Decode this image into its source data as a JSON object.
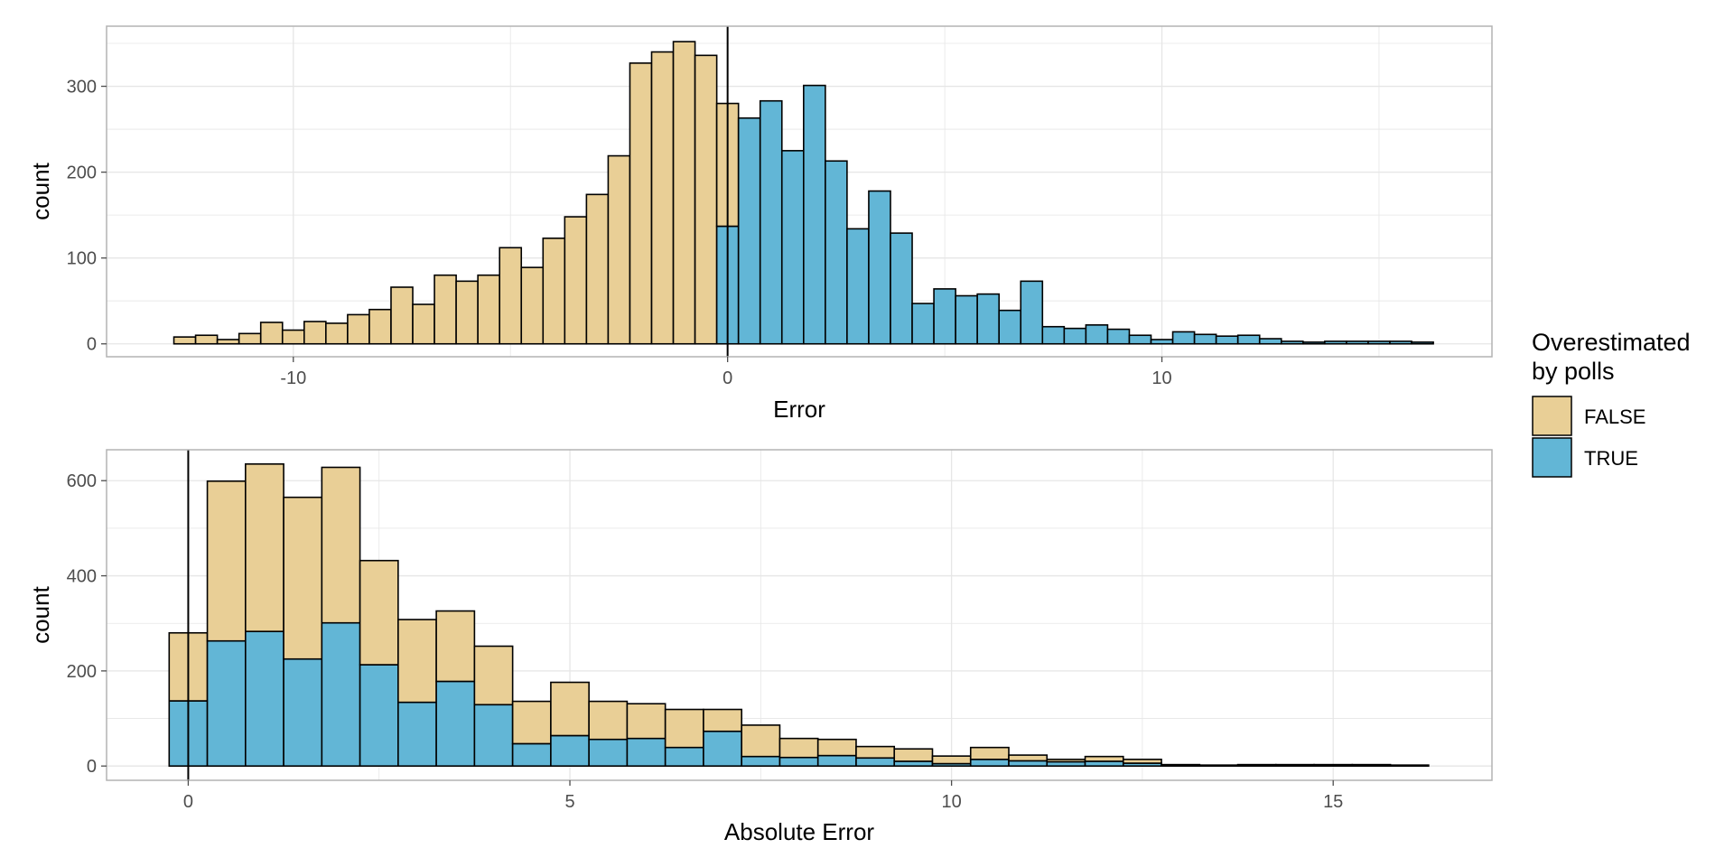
{
  "colors": {
    "false_fill": "#E9CF96",
    "true_fill": "#62B6D6",
    "bar_stroke": "#000000",
    "grid": "#e6e6e6",
    "panel_border": "#b3b3b3",
    "tick_text": "#4d4d4d"
  },
  "legend": {
    "title_line1": "Overestimated",
    "title_line2": "by polls",
    "items": [
      {
        "label": "FALSE",
        "color": "#E9CF96"
      },
      {
        "label": "TRUE",
        "color": "#62B6D6"
      }
    ],
    "position": "right"
  },
  "chart_data": [
    {
      "type": "bar",
      "subtype": "stacked-histogram",
      "xlabel": "Error",
      "ylabel": "count",
      "xlim": [
        -14.3,
        17.6
      ],
      "ylim": [
        -15,
        370
      ],
      "xticks": [
        -10,
        0,
        10
      ],
      "yticks": [
        0,
        100,
        200,
        300
      ],
      "vline": 0,
      "grid": true,
      "bin_width": 0.5,
      "bins": [
        {
          "x0": -12.75,
          "false": 8,
          "true": 0
        },
        {
          "x0": -12.25,
          "false": 10,
          "true": 0
        },
        {
          "x0": -11.75,
          "false": 5,
          "true": 0
        },
        {
          "x0": -11.25,
          "false": 12,
          "true": 0
        },
        {
          "x0": -10.75,
          "false": 25,
          "true": 0
        },
        {
          "x0": -10.25,
          "false": 16,
          "true": 0
        },
        {
          "x0": -9.75,
          "false": 26,
          "true": 0
        },
        {
          "x0": -9.25,
          "false": 24,
          "true": 0
        },
        {
          "x0": -8.75,
          "false": 34,
          "true": 0
        },
        {
          "x0": -8.25,
          "false": 40,
          "true": 0
        },
        {
          "x0": -7.75,
          "false": 66,
          "true": 0
        },
        {
          "x0": -7.25,
          "false": 46,
          "true": 0
        },
        {
          "x0": -6.75,
          "false": 80,
          "true": 0
        },
        {
          "x0": -6.25,
          "false": 73,
          "true": 0
        },
        {
          "x0": -5.75,
          "false": 80,
          "true": 0
        },
        {
          "x0": -5.25,
          "false": 112,
          "true": 0
        },
        {
          "x0": -4.75,
          "false": 89,
          "true": 0
        },
        {
          "x0": -4.25,
          "false": 123,
          "true": 0
        },
        {
          "x0": -3.75,
          "false": 148,
          "true": 0
        },
        {
          "x0": -3.25,
          "false": 174,
          "true": 0
        },
        {
          "x0": -2.75,
          "false": 219,
          "true": 0
        },
        {
          "x0": -2.25,
          "false": 327,
          "true": 0
        },
        {
          "x0": -1.75,
          "false": 340,
          "true": 0
        },
        {
          "x0": -1.25,
          "false": 352,
          "true": 0
        },
        {
          "x0": -0.75,
          "false": 336,
          "true": 0
        },
        {
          "x0": -0.25,
          "false": 143,
          "true": 137
        },
        {
          "x0": 0.25,
          "false": 0,
          "true": 263
        },
        {
          "x0": 0.75,
          "false": 0,
          "true": 283
        },
        {
          "x0": 1.25,
          "false": 0,
          "true": 225
        },
        {
          "x0": 1.75,
          "false": 0,
          "true": 301
        },
        {
          "x0": 2.25,
          "false": 0,
          "true": 213
        },
        {
          "x0": 2.75,
          "false": 0,
          "true": 134
        },
        {
          "x0": 3.25,
          "false": 0,
          "true": 178
        },
        {
          "x0": 3.75,
          "false": 0,
          "true": 129
        },
        {
          "x0": 4.25,
          "false": 0,
          "true": 47
        },
        {
          "x0": 4.75,
          "false": 0,
          "true": 64
        },
        {
          "x0": 5.25,
          "false": 0,
          "true": 56
        },
        {
          "x0": 5.75,
          "false": 0,
          "true": 58
        },
        {
          "x0": 6.25,
          "false": 0,
          "true": 39
        },
        {
          "x0": 6.75,
          "false": 0,
          "true": 73
        },
        {
          "x0": 7.25,
          "false": 0,
          "true": 20
        },
        {
          "x0": 7.75,
          "false": 0,
          "true": 18
        },
        {
          "x0": 8.25,
          "false": 0,
          "true": 22
        },
        {
          "x0": 8.75,
          "false": 0,
          "true": 17
        },
        {
          "x0": 9.25,
          "false": 0,
          "true": 10
        },
        {
          "x0": 9.75,
          "false": 0,
          "true": 5
        },
        {
          "x0": 10.25,
          "false": 0,
          "true": 14
        },
        {
          "x0": 10.75,
          "false": 0,
          "true": 11
        },
        {
          "x0": 11.25,
          "false": 0,
          "true": 9
        },
        {
          "x0": 11.75,
          "false": 0,
          "true": 10
        },
        {
          "x0": 12.25,
          "false": 0,
          "true": 6
        },
        {
          "x0": 12.75,
          "false": 0,
          "true": 3
        },
        {
          "x0": 13.25,
          "false": 0,
          "true": 2
        },
        {
          "x0": 13.75,
          "false": 0,
          "true": 3
        },
        {
          "x0": 14.25,
          "false": 0,
          "true": 3
        },
        {
          "x0": 14.75,
          "false": 0,
          "true": 3
        },
        {
          "x0": 15.25,
          "false": 0,
          "true": 3
        },
        {
          "x0": 15.75,
          "false": 0,
          "true": 2
        }
      ]
    },
    {
      "type": "bar",
      "subtype": "stacked-histogram",
      "xlabel": "Absolute Error",
      "ylabel": "count",
      "xlim": [
        -1.07,
        17.08
      ],
      "ylim": [
        -30,
        665
      ],
      "xticks": [
        0,
        5,
        10,
        15
      ],
      "yticks": [
        0,
        200,
        400,
        600
      ],
      "vline": 0,
      "grid": true,
      "bin_width": 0.5,
      "bins": [
        {
          "x0": -0.25,
          "false": 143,
          "true": 137
        },
        {
          "x0": 0.25,
          "false": 336,
          "true": 263
        },
        {
          "x0": 0.75,
          "false": 352,
          "true": 283
        },
        {
          "x0": 1.25,
          "false": 340,
          "true": 225
        },
        {
          "x0": 1.75,
          "false": 327,
          "true": 301
        },
        {
          "x0": 2.25,
          "false": 219,
          "true": 213
        },
        {
          "x0": 2.75,
          "false": 174,
          "true": 134
        },
        {
          "x0": 3.25,
          "false": 148,
          "true": 178
        },
        {
          "x0": 3.75,
          "false": 123,
          "true": 129
        },
        {
          "x0": 4.25,
          "false": 89,
          "true": 47
        },
        {
          "x0": 4.75,
          "false": 112,
          "true": 64
        },
        {
          "x0": 5.25,
          "false": 80,
          "true": 56
        },
        {
          "x0": 5.75,
          "false": 73,
          "true": 58
        },
        {
          "x0": 6.25,
          "false": 80,
          "true": 39
        },
        {
          "x0": 6.75,
          "false": 46,
          "true": 73
        },
        {
          "x0": 7.25,
          "false": 66,
          "true": 20
        },
        {
          "x0": 7.75,
          "false": 40,
          "true": 18
        },
        {
          "x0": 8.25,
          "false": 34,
          "true": 22
        },
        {
          "x0": 8.75,
          "false": 24,
          "true": 17
        },
        {
          "x0": 9.25,
          "false": 26,
          "true": 10
        },
        {
          "x0": 9.75,
          "false": 16,
          "true": 5
        },
        {
          "x0": 10.25,
          "false": 25,
          "true": 14
        },
        {
          "x0": 10.75,
          "false": 12,
          "true": 11
        },
        {
          "x0": 11.25,
          "false": 5,
          "true": 9
        },
        {
          "x0": 11.75,
          "false": 10,
          "true": 10
        },
        {
          "x0": 12.25,
          "false": 8,
          "true": 6
        },
        {
          "x0": 12.75,
          "false": 0,
          "true": 3
        },
        {
          "x0": 13.25,
          "false": 0,
          "true": 2
        },
        {
          "x0": 13.75,
          "false": 0,
          "true": 3
        },
        {
          "x0": 14.25,
          "false": 0,
          "true": 3
        },
        {
          "x0": 14.75,
          "false": 0,
          "true": 3
        },
        {
          "x0": 15.25,
          "false": 0,
          "true": 3
        },
        {
          "x0": 15.75,
          "false": 0,
          "true": 2
        }
      ]
    }
  ]
}
